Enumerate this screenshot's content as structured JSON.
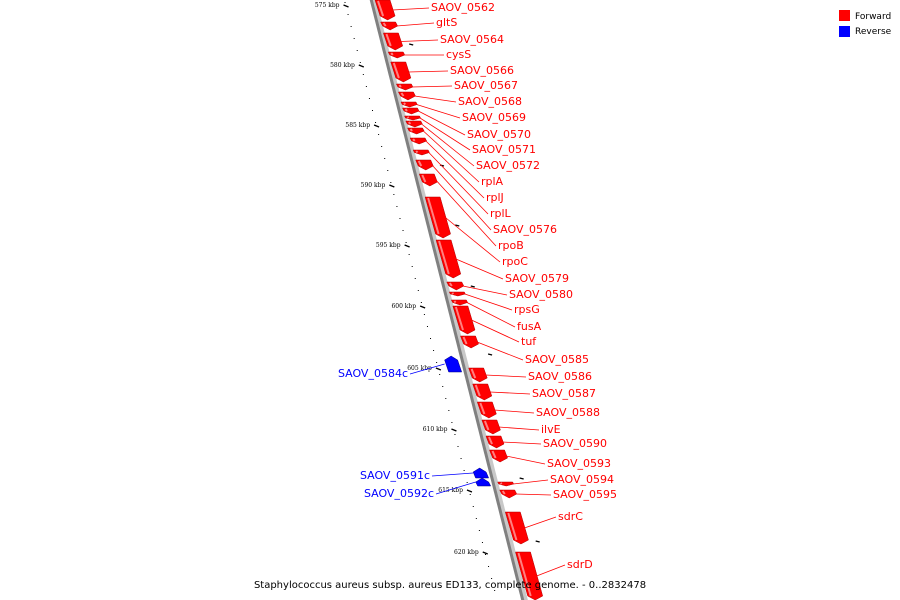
{
  "caption": "Staphylococcus aureus subsp. aureus ED133, complete genome. - 0..2832478",
  "legend": [
    {
      "label": "Forward",
      "color": "#ff0000"
    },
    {
      "label": "Reverse",
      "color": "#0000ff"
    }
  ],
  "colors": {
    "forward": "#ff0000",
    "reverse": "#0000ff",
    "backbone": "#808080"
  },
  "ticks": [
    "575 kbp",
    "580 kbp",
    "585 kbp",
    "590 kbp",
    "595 kbp",
    "600 kbp",
    "605 kbp",
    "610 kbp",
    "615 kbp",
    "620 kbp"
  ],
  "forward_genes": [
    "SAOV_0562",
    "gltS",
    "SAOV_0564",
    "cysS",
    "SAOV_0566",
    "SAOV_0567",
    "SAOV_0568",
    "SAOV_0569",
    "SAOV_0570",
    "SAOV_0571",
    "SAOV_0572",
    "rplA",
    "rplJ",
    "rplL",
    "SAOV_0576",
    "rpoB",
    "rpoC",
    "SAOV_0579",
    "SAOV_0580",
    "rpsG",
    "fusA",
    "tuf",
    "SAOV_0585",
    "SAOV_0586",
    "SAOV_0587",
    "SAOV_0588",
    "ilvE",
    "SAOV_0590",
    "SAOV_0593",
    "SAOV_0594",
    "SAOV_0595",
    "sdrC",
    "sdrD"
  ],
  "reverse_genes": [
    "SAOV_0584c",
    "SAOV_0591c",
    "SAOV_0592c"
  ]
}
